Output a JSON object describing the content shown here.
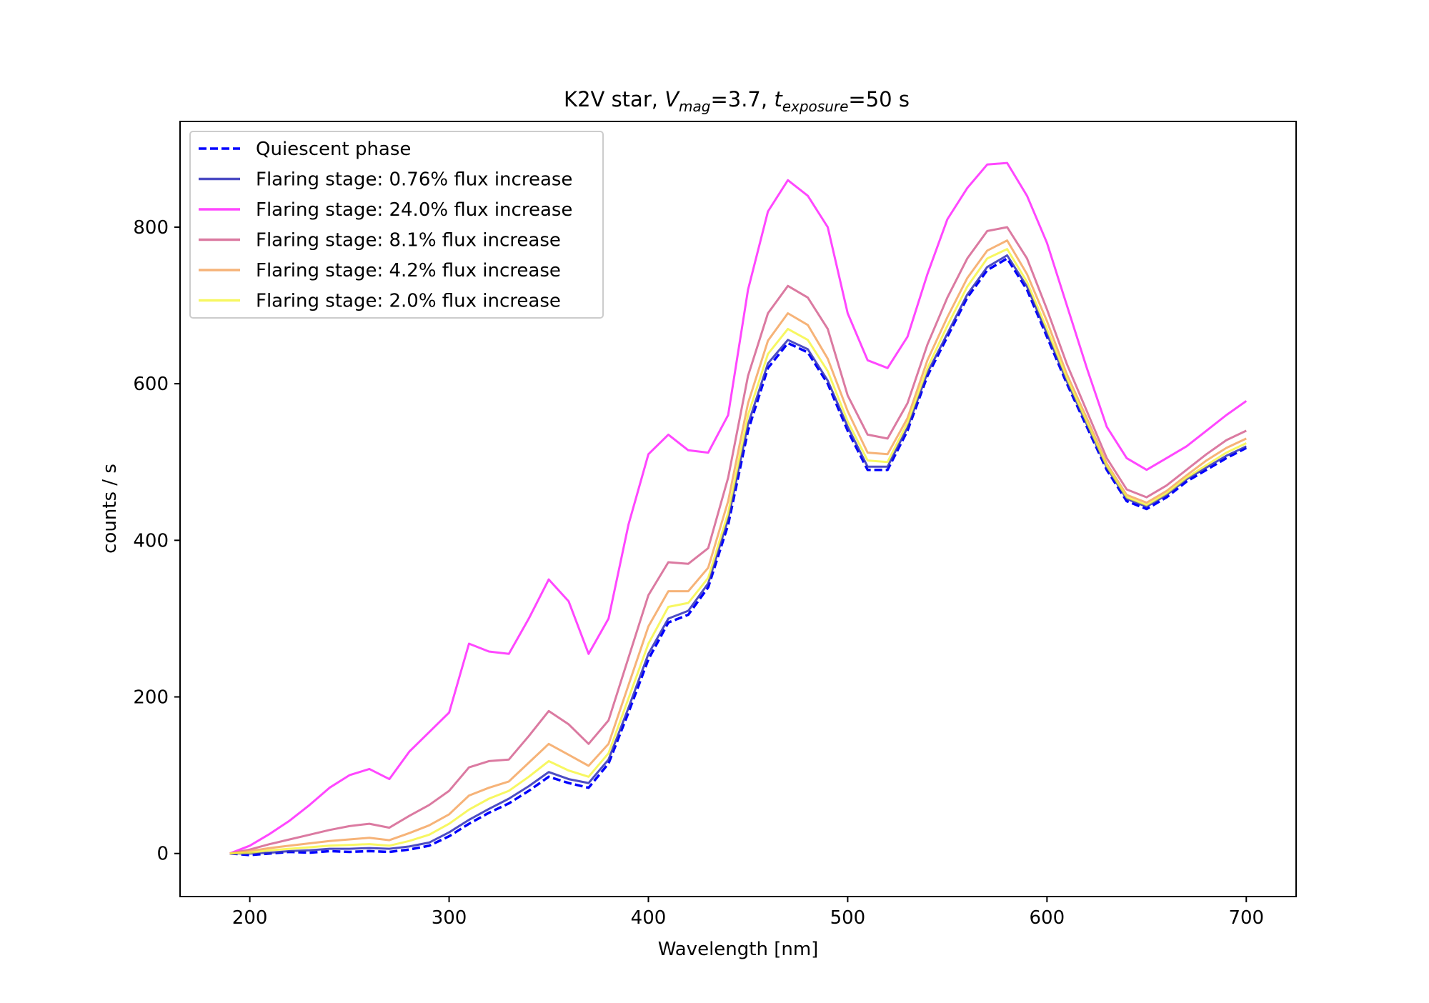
{
  "chart_data": {
    "type": "line",
    "title_parts": [
      {
        "text": "K2V star, ",
        "style": "normal"
      },
      {
        "text": "V",
        "style": "italic"
      },
      {
        "text": "mag",
        "style": "italic-sub"
      },
      {
        "text": "=3.7, ",
        "style": "normal"
      },
      {
        "text": "t",
        "style": "italic"
      },
      {
        "text": "exposure",
        "style": "italic-sub"
      },
      {
        "text": "=50 s",
        "style": "normal"
      }
    ],
    "xlabel": "Wavelength [nm]",
    "ylabel": "counts / s",
    "xlim": [
      165,
      725
    ],
    "ylim": [
      -55,
      935
    ],
    "xticks": [
      200,
      300,
      400,
      500,
      600,
      700
    ],
    "yticks": [
      0,
      200,
      400,
      600,
      800
    ],
    "grid": false,
    "legend_position": "upper-left",
    "x": [
      190,
      200,
      210,
      220,
      230,
      240,
      250,
      260,
      270,
      280,
      290,
      300,
      310,
      320,
      330,
      340,
      350,
      360,
      370,
      380,
      390,
      400,
      410,
      420,
      430,
      440,
      450,
      460,
      470,
      480,
      490,
      500,
      510,
      520,
      530,
      540,
      550,
      560,
      570,
      580,
      590,
      600,
      610,
      620,
      630,
      640,
      650,
      660,
      670,
      680,
      690,
      700
    ],
    "series": [
      {
        "name": "Quiescent phase",
        "color": "#0000ff",
        "style": "dashed",
        "opacity": 1.0,
        "values": [
          0,
          -2,
          0,
          2,
          1,
          3,
          2,
          3,
          2,
          5,
          10,
          22,
          38,
          52,
          64,
          80,
          98,
          90,
          84,
          115,
          180,
          248,
          295,
          305,
          340,
          420,
          540,
          620,
          652,
          640,
          600,
          540,
          490,
          490,
          540,
          610,
          660,
          710,
          745,
          760,
          720,
          660,
          600,
          545,
          490,
          450,
          440,
          455,
          475,
          490,
          505,
          518
        ]
      },
      {
        "name": "Flaring stage: 0.76% flux increase",
        "color": "#2d2db8",
        "style": "solid",
        "opacity": 0.85,
        "values": [
          0,
          0,
          1,
          3,
          4,
          6,
          6,
          7,
          6,
          9,
          14,
          27,
          43,
          57,
          70,
          86,
          104,
          95,
          90,
          120,
          186,
          255,
          300,
          310,
          345,
          427,
          548,
          626,
          656,
          644,
          604,
          545,
          494,
          494,
          544,
          614,
          664,
          714,
          749,
          764,
          724,
          664,
          603,
          548,
          493,
          453,
          443,
          458,
          478,
          493,
          508,
          520
        ]
      },
      {
        "name": "Flaring stage: 24.0% flux increase",
        "color": "#ff33ff",
        "style": "solid",
        "opacity": 0.9,
        "values": [
          0,
          10,
          25,
          42,
          62,
          84,
          100,
          108,
          95,
          130,
          155,
          180,
          268,
          258,
          255,
          300,
          350,
          322,
          255,
          300,
          420,
          510,
          535,
          515,
          512,
          560,
          720,
          820,
          860,
          840,
          800,
          690,
          630,
          620,
          660,
          740,
          810,
          850,
          880,
          882,
          840,
          780,
          700,
          620,
          545,
          505,
          490,
          505,
          520,
          540,
          560,
          578
        ]
      },
      {
        "name": "Flaring stage: 8.1% flux increase",
        "color": "#d9739c",
        "style": "solid",
        "opacity": 0.95,
        "values": [
          0,
          5,
          12,
          18,
          24,
          30,
          35,
          38,
          33,
          48,
          62,
          80,
          110,
          118,
          120,
          150,
          182,
          165,
          140,
          170,
          250,
          330,
          372,
          370,
          390,
          480,
          610,
          690,
          725,
          710,
          670,
          585,
          535,
          530,
          575,
          650,
          710,
          760,
          795,
          800,
          760,
          695,
          625,
          565,
          505,
          465,
          455,
          470,
          490,
          510,
          528,
          540
        ]
      },
      {
        "name": "Flaring stage: 4.2% flux increase",
        "color": "#f5a660",
        "style": "solid",
        "opacity": 0.85,
        "values": [
          0,
          3,
          7,
          10,
          13,
          16,
          18,
          20,
          17,
          26,
          36,
          50,
          74,
          84,
          92,
          116,
          140,
          126,
          112,
          140,
          215,
          290,
          335,
          335,
          365,
          450,
          575,
          655,
          690,
          675,
          632,
          565,
          512,
          510,
          556,
          630,
          685,
          735,
          770,
          783,
          740,
          680,
          612,
          556,
          498,
          458,
          448,
          463,
          483,
          502,
          518,
          530
        ]
      },
      {
        "name": "Flaring stage: 2.0% flux increase",
        "color": "#f5f53a",
        "style": "solid",
        "opacity": 0.8,
        "values": [
          0,
          1,
          4,
          6,
          8,
          10,
          11,
          12,
          10,
          16,
          24,
          38,
          56,
          70,
          80,
          98,
          118,
          106,
          98,
          128,
          198,
          268,
          315,
          320,
          352,
          435,
          560,
          638,
          670,
          656,
          616,
          552,
          502,
          500,
          550,
          620,
          674,
          724,
          760,
          772,
          730,
          670,
          607,
          551,
          495,
          455,
          445,
          460,
          480,
          496,
          512,
          524
        ]
      }
    ]
  }
}
